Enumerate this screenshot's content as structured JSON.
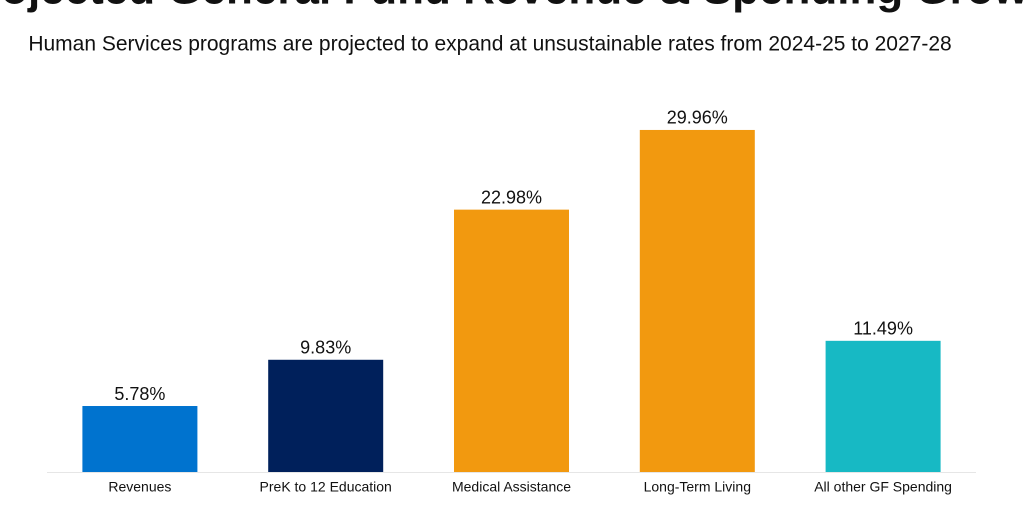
{
  "chart_data": {
    "type": "bar",
    "title": "Projected General Fund Revenue & Spending Growth",
    "subtitle": "Human Services programs are projected to expand at unsustainable rates from 2024-25 to 2027-28",
    "categories": [
      "Revenues",
      "PreK to 12 Education",
      "Medical Assistance",
      "Long-Term Living",
      "All other GF Spending"
    ],
    "values": [
      5.78,
      9.83,
      22.98,
      29.96,
      11.49
    ],
    "value_labels": [
      "5.78%",
      "9.83%",
      "22.98%",
      "29.96%",
      "11.49%"
    ],
    "colors": [
      "#0073cf",
      "#00205b",
      "#f2990f",
      "#f2990f",
      "#17b9c4"
    ],
    "ylim": [
      0,
      30
    ]
  }
}
